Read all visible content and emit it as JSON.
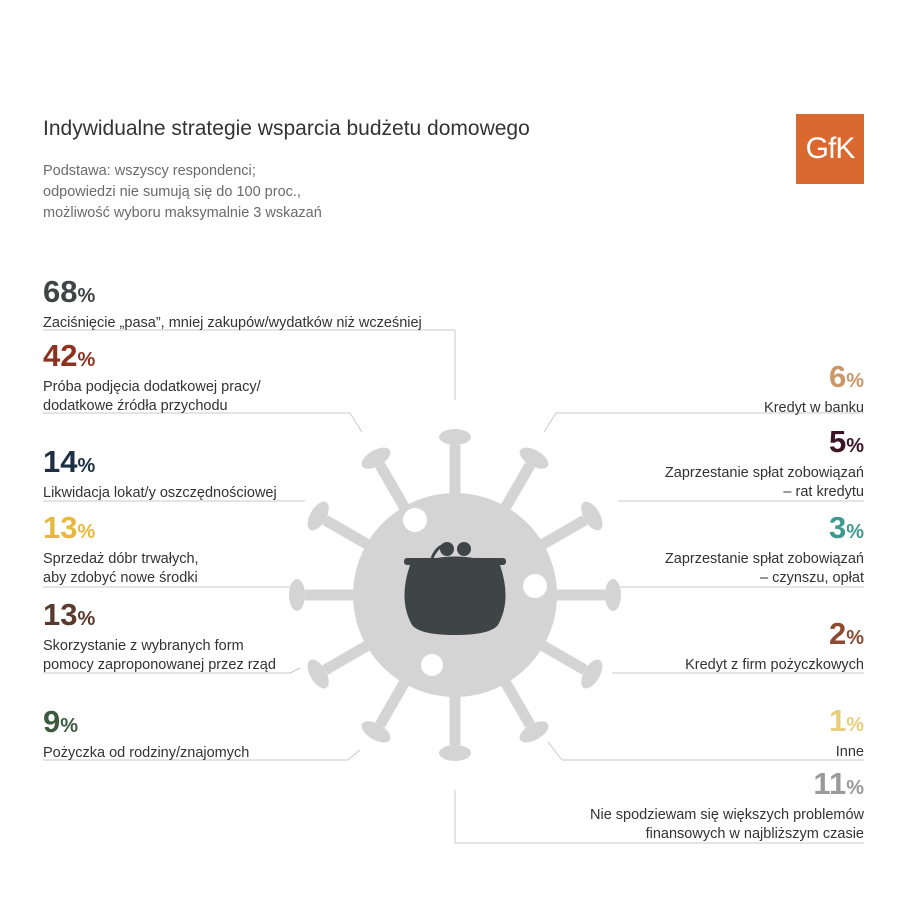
{
  "title": "Indywidualne strategie wsparcia budżetu domowego",
  "subtitle": [
    "Podstawa: wszyscy respondenci;",
    "odpowiedzi nie sumują się do 100 proc.,",
    "możliwość wyboru maksymalnie 3 wskazań"
  ],
  "logo_text": "GfK",
  "colors": {
    "virus": "#d4d4d4",
    "wallet": "#3f4445",
    "divider": "#c8c8c8",
    "logo": "#d9692f"
  },
  "chart_data": {
    "type": "table",
    "unit": "%",
    "items": [
      {
        "value": 68,
        "label": [
          "Zaciśnięcie „pasa”, mniej zakupów/wydatków niż wcześniej"
        ],
        "color": "#3f4445"
      },
      {
        "value": 42,
        "label": [
          "Próba podjęcia dodatkowej pracy/",
          "dodatkowe źródła przychodu"
        ],
        "color": "#8c3320"
      },
      {
        "value": 14,
        "label": [
          "Likwidacja lokat/y oszczędnościowej"
        ],
        "color": "#1d3046"
      },
      {
        "value": 13,
        "label": [
          "Sprzedaż dóbr trwałych,",
          "aby zdobyć nowe środki"
        ],
        "color": "#e8b83c"
      },
      {
        "value": 13,
        "label": [
          "Skorzystanie z wybranych form",
          "pomocy zaproponowanej przez rząd"
        ],
        "color": "#5b3a2e"
      },
      {
        "value": 9,
        "label": [
          "Pożyczka od rodziny/znajomych"
        ],
        "color": "#3d5a40"
      },
      {
        "value": 6,
        "label": [
          "Kredyt w banku"
        ],
        "color": "#c9976a"
      },
      {
        "value": 5,
        "label": [
          "Zaprzestanie spłat zobowiązań",
          "– rat kredytu"
        ],
        "color": "#3a1524"
      },
      {
        "value": 3,
        "label": [
          "Zaprzestanie spłat zobowiązań",
          "– czynszu, opłat"
        ],
        "color": "#3d9a8f"
      },
      {
        "value": 2,
        "label": [
          "Kredyt z firm pożyczkowych"
        ],
        "color": "#8c4a33"
      },
      {
        "value": 1,
        "label": [
          "Inne"
        ],
        "color": "#e8cd7a"
      },
      {
        "value": 11,
        "label": [
          "Nie spodziewam się większych problemów",
          "finansowych w najbliższym czasie"
        ],
        "color": "#9a9a9a"
      }
    ]
  }
}
